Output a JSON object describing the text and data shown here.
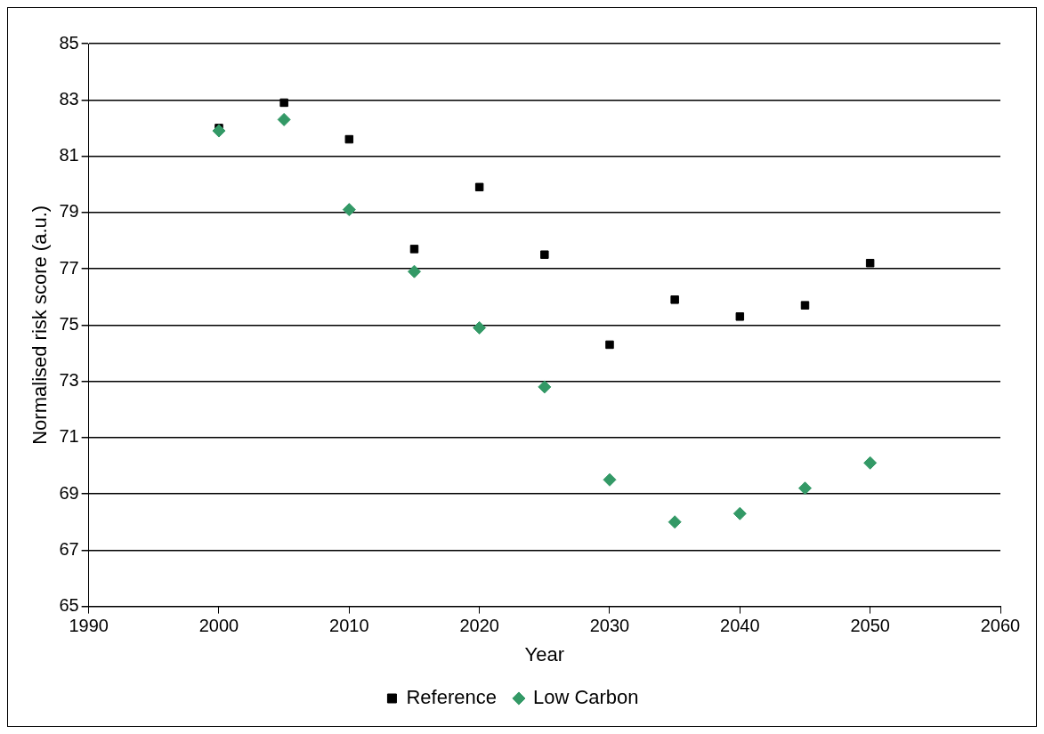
{
  "chart_data": {
    "type": "scatter",
    "xlabel": "Year",
    "ylabel": "Normalised risk score (a.u.)",
    "x": [
      2000,
      2005,
      2010,
      2015,
      2020,
      2025,
      2030,
      2035,
      2040,
      2045,
      2050
    ],
    "series": [
      {
        "name": "Reference",
        "color": "#000000",
        "marker": "square",
        "values": [
          82.0,
          82.9,
          81.6,
          77.7,
          79.9,
          77.5,
          74.3,
          75.9,
          75.3,
          75.7,
          77.2
        ]
      },
      {
        "name": "Low Carbon",
        "color": "#339966",
        "marker": "diamond",
        "values": [
          81.9,
          82.3,
          79.1,
          76.9,
          74.9,
          72.8,
          69.5,
          68.0,
          68.3,
          69.2,
          70.1
        ]
      }
    ],
    "xlim": [
      1990,
      2060
    ],
    "xticks": [
      1990,
      2000,
      2010,
      2020,
      2030,
      2040,
      2050,
      2060
    ],
    "ylim": [
      65,
      85
    ],
    "yticks": [
      65,
      67,
      69,
      71,
      73,
      75,
      77,
      79,
      81,
      83,
      85
    ],
    "grid": "y",
    "legend": "bottom"
  }
}
